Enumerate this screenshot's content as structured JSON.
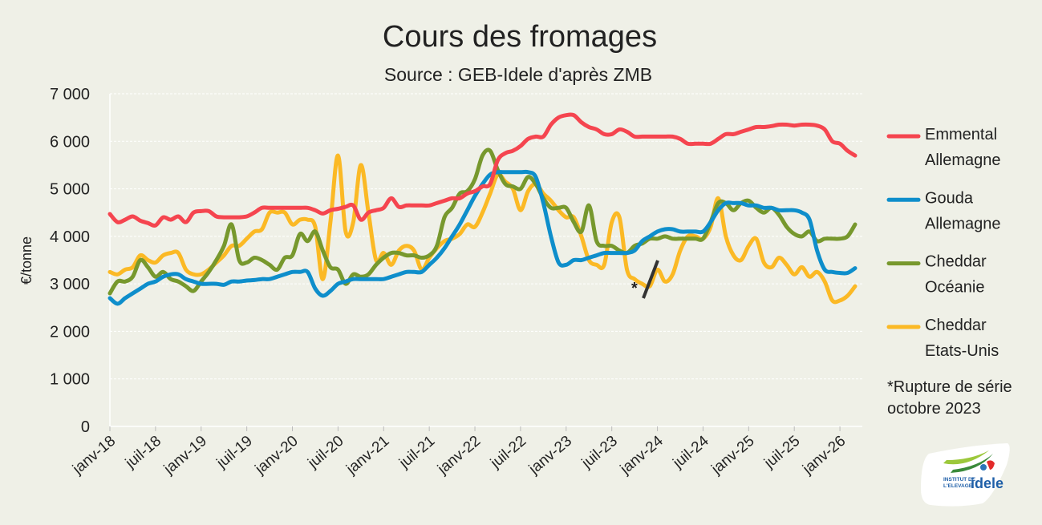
{
  "chart_data": {
    "type": "line",
    "title": "Cours des fromages",
    "subtitle": "Source : GEB-Idele d'après ZMB",
    "ylabel": "€/tonne",
    "xlabel": "",
    "ylim": [
      0,
      7000
    ],
    "yticks": [
      "0",
      "1 000",
      "2 000",
      "3 000",
      "4 000",
      "5 000",
      "6 000",
      "7 000"
    ],
    "ytick_values": [
      0,
      1000,
      2000,
      3000,
      4000,
      5000,
      6000,
      7000
    ],
    "x_start": "janv-18",
    "x_frequency": "monthly",
    "xticks": [
      "janv-18",
      "juil-18",
      "janv-19",
      "juil-19",
      "janv-20",
      "juil-20",
      "janv-21",
      "juil-21",
      "janv-22",
      "juil-22",
      "janv-23",
      "juil-23",
      "janv-24",
      "juil-24",
      "janv-25",
      "juil-25",
      "janv-26"
    ],
    "grid": true,
    "legend": "right",
    "series": [
      {
        "name": "Emmental Allemagne",
        "name_lines": [
          "Emmental",
          "Allemagne"
        ],
        "color": "#f5454f",
        "values": [
          4470,
          4300,
          4350,
          4420,
          4330,
          4280,
          4230,
          4400,
          4350,
          4420,
          4300,
          4500,
          4530,
          4530,
          4420,
          4400,
          4400,
          4400,
          4420,
          4500,
          4600,
          4600,
          4600,
          4600,
          4600,
          4600,
          4600,
          4550,
          4480,
          4550,
          4580,
          4620,
          4650,
          4350,
          4500,
          4550,
          4600,
          4800,
          4620,
          4650,
          4650,
          4650,
          4650,
          4700,
          4750,
          4800,
          4800,
          4900,
          4950,
          5050,
          5100,
          5600,
          5750,
          5800,
          5900,
          6050,
          6100,
          6100,
          6350,
          6500,
          6550,
          6550,
          6400,
          6300,
          6250,
          6150,
          6150,
          6250,
          6200,
          6100,
          6100,
          6100,
          6100,
          6100,
          6100,
          6050,
          5950,
          5950,
          5950,
          5950,
          6050,
          6150,
          6150,
          6200,
          6250,
          6300,
          6300,
          6320,
          6350,
          6350,
          6330,
          6350,
          6350,
          6330,
          6250,
          6000,
          5950,
          5800,
          5700
        ]
      },
      {
        "name": "Gouda Allemagne",
        "name_lines": [
          "Gouda",
          "Allemagne"
        ],
        "color": "#0e8ecb",
        "values": [
          2700,
          2580,
          2700,
          2800,
          2900,
          3000,
          3050,
          3150,
          3200,
          3200,
          3100,
          3050,
          3000,
          3000,
          3000,
          2980,
          3050,
          3050,
          3070,
          3080,
          3100,
          3100,
          3150,
          3200,
          3250,
          3250,
          3250,
          2900,
          2750,
          2850,
          3000,
          3050,
          3100,
          3100,
          3100,
          3100,
          3100,
          3150,
          3200,
          3250,
          3250,
          3250,
          3400,
          3550,
          3750,
          4000,
          4250,
          4550,
          4850,
          5100,
          5300,
          5350,
          5350,
          5350,
          5350,
          5350,
          5250,
          4700,
          4000,
          3450,
          3400,
          3500,
          3500,
          3550,
          3600,
          3650,
          3650,
          3650,
          3650,
          3700,
          3900,
          4000,
          4100,
          4150,
          4150,
          4100,
          4100,
          4100,
          4100,
          4300,
          4550,
          4700,
          4700,
          4700,
          4650,
          4650,
          4600,
          4600,
          4550,
          4550,
          4550,
          4500,
          4350,
          3700,
          3300,
          3250,
          3230,
          3230,
          3330
        ]
      },
      {
        "name": "Cheddar Océanie",
        "name_lines": [
          "Cheddar",
          "Océanie"
        ],
        "color": "#77982d",
        "values": [
          2800,
          3050,
          3050,
          3150,
          3500,
          3350,
          3150,
          3250,
          3100,
          3050,
          2950,
          2850,
          3050,
          3250,
          3500,
          3800,
          4250,
          3500,
          3450,
          3550,
          3500,
          3400,
          3300,
          3550,
          3600,
          4050,
          3900,
          4100,
          3700,
          3350,
          3300,
          3000,
          3200,
          3150,
          3200,
          3400,
          3550,
          3650,
          3650,
          3600,
          3600,
          3550,
          3600,
          3800,
          4400,
          4600,
          4900,
          4950,
          5200,
          5700,
          5800,
          5400,
          5100,
          5050,
          5000,
          5250,
          5100,
          4800,
          4600,
          4600,
          4600,
          4300,
          4100,
          4650,
          3900,
          3800,
          3800,
          3700,
          3650,
          3800,
          3850,
          3950,
          3950,
          4000,
          3950,
          3950,
          3950,
          3950,
          3950,
          4300,
          4700,
          4700,
          4550,
          4700,
          4750,
          4600,
          4500,
          4600,
          4450,
          4200,
          4050,
          4000,
          4100,
          3900,
          3950,
          3950,
          3950,
          4000,
          4250
        ]
      },
      {
        "name": "Cheddar Etats-Unis",
        "name_lines": [
          "Cheddar",
          "Etats-Unis"
        ],
        "color": "#fbb925",
        "values": [
          3250,
          3200,
          3300,
          3350,
          3600,
          3500,
          3450,
          3600,
          3650,
          3650,
          3300,
          3200,
          3200,
          3300,
          3450,
          3600,
          3800,
          3800,
          3950,
          4100,
          4150,
          4500,
          4500,
          4500,
          4250,
          4350,
          4350,
          4200,
          3100,
          4300,
          5700,
          4100,
          4300,
          5500,
          4500,
          3500,
          3650,
          3400,
          3700,
          3800,
          3700,
          3300,
          3550,
          3750,
          3900,
          3950,
          4050,
          4250,
          4200,
          4500,
          4900,
          5300,
          5150,
          5000,
          4550,
          4950,
          5100,
          4900,
          4750,
          4550,
          4400,
          4400,
          4000,
          3500,
          3400,
          3400,
          4300,
          4400,
          3300,
          3100,
          3000,
          2950,
          3300,
          3050,
          3200,
          3700,
          4000,
          4000,
          3950,
          4200,
          4800,
          4000,
          3600,
          3500,
          3800,
          3950,
          3450,
          3350,
          3550,
          3400,
          3200,
          3350,
          3150,
          3250,
          3050,
          2650,
          2650,
          2750,
          2950
        ]
      }
    ],
    "annotations": [
      {
        "text": "*",
        "at": "oct-23",
        "meaning": "series break marker on Cheddar Etats-Unis"
      },
      {
        "text_lines": [
          "*Rupture de série",
          "octobre 2023"
        ]
      }
    ]
  },
  "logo": {
    "text_lines": [
      "INSTITUT DE",
      "L'ELEVAGE"
    ],
    "brand": "idele"
  }
}
